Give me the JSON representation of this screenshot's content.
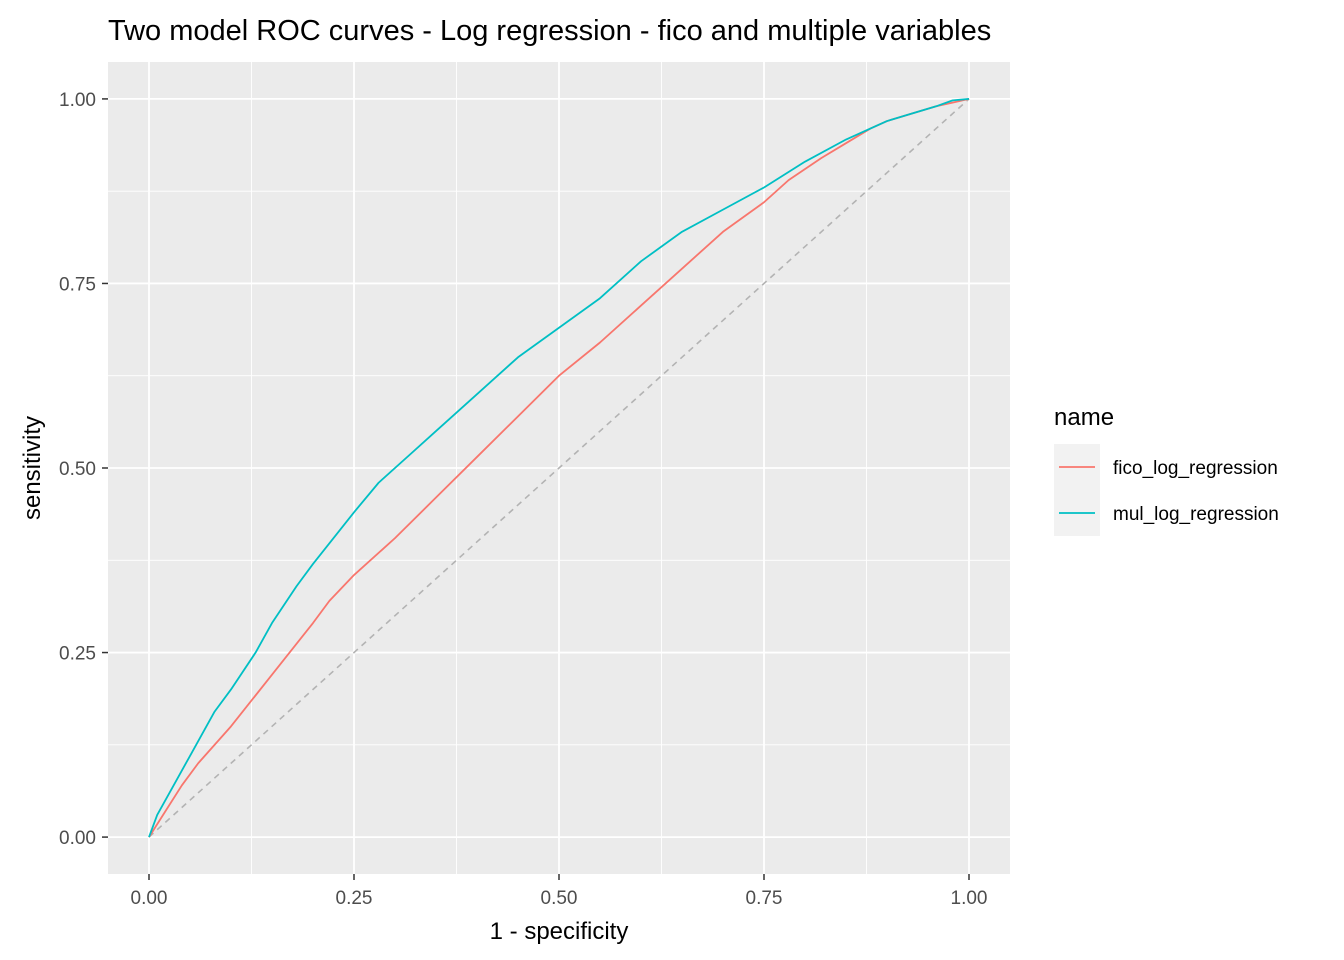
{
  "chart_data": {
    "type": "line",
    "title": "Two model ROC curves - Log regression - fico and multiple variables",
    "xlabel": "1 - specificity",
    "ylabel": "sensitivity",
    "xlim": [
      -0.05,
      1.05
    ],
    "ylim": [
      -0.05,
      1.05
    ],
    "x_ticks": [
      0,
      0.25,
      0.5,
      0.75,
      1
    ],
    "x_tick_labels": [
      "0.00",
      "0.25",
      "0.50",
      "0.75",
      "1.00"
    ],
    "y_ticks": [
      0,
      0.25,
      0.5,
      0.75,
      1
    ],
    "y_tick_labels": [
      "0.00",
      "0.25",
      "0.50",
      "0.75",
      "1.00"
    ],
    "grid": true,
    "legend": {
      "title": "name",
      "position": "right"
    },
    "reference_line": {
      "x": [
        0,
        1
      ],
      "y": [
        0,
        1
      ],
      "style": "dashed",
      "color": "#b3b3b3"
    },
    "series": [
      {
        "name": "fico_log_regression",
        "color": "#F8766D",
        "x": [
          0,
          0.02,
          0.04,
          0.06,
          0.1,
          0.15,
          0.2,
          0.22,
          0.25,
          0.3,
          0.35,
          0.4,
          0.45,
          0.5,
          0.55,
          0.6,
          0.65,
          0.7,
          0.75,
          0.78,
          0.82,
          0.85,
          0.88,
          0.9,
          0.93,
          0.96,
          0.98,
          1
        ],
        "y": [
          0,
          0.035,
          0.07,
          0.1,
          0.15,
          0.22,
          0.29,
          0.32,
          0.355,
          0.405,
          0.46,
          0.515,
          0.57,
          0.625,
          0.67,
          0.72,
          0.77,
          0.82,
          0.86,
          0.89,
          0.92,
          0.94,
          0.96,
          0.97,
          0.98,
          0.99,
          0.995,
          1
        ]
      },
      {
        "name": "mul_log_regression",
        "color": "#00BFC4",
        "x": [
          0,
          0.01,
          0.03,
          0.05,
          0.08,
          0.1,
          0.13,
          0.15,
          0.18,
          0.2,
          0.25,
          0.28,
          0.32,
          0.35,
          0.4,
          0.45,
          0.5,
          0.55,
          0.6,
          0.65,
          0.7,
          0.75,
          0.8,
          0.85,
          0.9,
          0.93,
          0.96,
          0.98,
          1
        ],
        "y": [
          0,
          0.03,
          0.07,
          0.11,
          0.17,
          0.2,
          0.25,
          0.29,
          0.34,
          0.37,
          0.44,
          0.48,
          0.52,
          0.55,
          0.6,
          0.65,
          0.69,
          0.73,
          0.78,
          0.82,
          0.85,
          0.88,
          0.915,
          0.945,
          0.97,
          0.98,
          0.99,
          0.998,
          1
        ]
      }
    ]
  }
}
